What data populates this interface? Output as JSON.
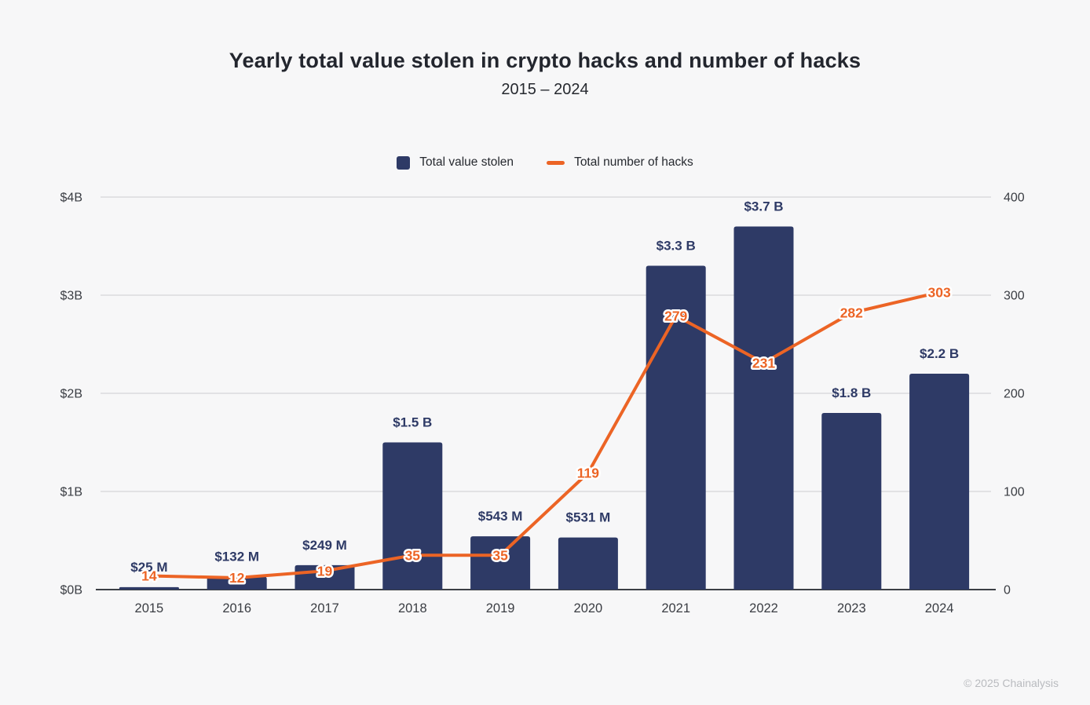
{
  "header": {
    "title": "Yearly total value stolen in crypto hacks and number of hacks",
    "subtitle": "2015 – 2024"
  },
  "legend": {
    "items": [
      {
        "label": "Total value stolen",
        "swatch": "square",
        "color": "#2e3a66"
      },
      {
        "label": "Total number of hacks",
        "swatch": "dash",
        "color": "#ec6425"
      }
    ]
  },
  "footer": {
    "credit": "© 2025 Chainalysis"
  },
  "colors": {
    "background": "#f7f7f8",
    "bar": "#2e3a66",
    "bar_label": "#2e3a66",
    "line": "#ec6425",
    "line_label": "#ec6425",
    "label_halo": "#ffffff",
    "grid": "#dbdcde",
    "axis_line": "#3c3f45",
    "tick_text": "#3a3d43"
  },
  "chart_data": {
    "type": "bar+line combo",
    "title": "Yearly total value stolen in crypto hacks and number of hacks",
    "subtitle": "2015 – 2024",
    "categories": [
      "2015",
      "2016",
      "2017",
      "2018",
      "2019",
      "2020",
      "2021",
      "2022",
      "2023",
      "2024"
    ],
    "series": [
      {
        "name": "Total value stolen",
        "type": "bar",
        "axis": "left",
        "unit": "USD billions",
        "values": [
          0.025,
          0.132,
          0.249,
          1.5,
          0.543,
          0.531,
          3.3,
          3.7,
          1.8,
          2.2
        ],
        "labels": [
          "$25 M",
          "$132 M",
          "$249 M",
          "$1.5 B",
          "$543 M",
          "$531 M",
          "$3.3 B",
          "$3.7 B",
          "$1.8 B",
          "$2.2 B"
        ]
      },
      {
        "name": "Total number of hacks",
        "type": "line",
        "axis": "right",
        "unit": "hacks",
        "values": [
          14,
          12,
          19,
          35,
          35,
          119,
          279,
          231,
          282,
          303
        ],
        "labels": [
          "14",
          "12",
          "19",
          "35",
          "35",
          "119",
          "279",
          "231",
          "282",
          "303"
        ]
      }
    ],
    "left_axis": {
      "ticks": [
        "$0B",
        "$1B",
        "$2B",
        "$3B",
        "$4B"
      ],
      "min": 0,
      "max": 4
    },
    "right_axis": {
      "ticks": [
        "0",
        "100",
        "200",
        "300",
        "400"
      ],
      "min": 0,
      "max": 400
    },
    "grid": true,
    "legend_position": "top"
  }
}
